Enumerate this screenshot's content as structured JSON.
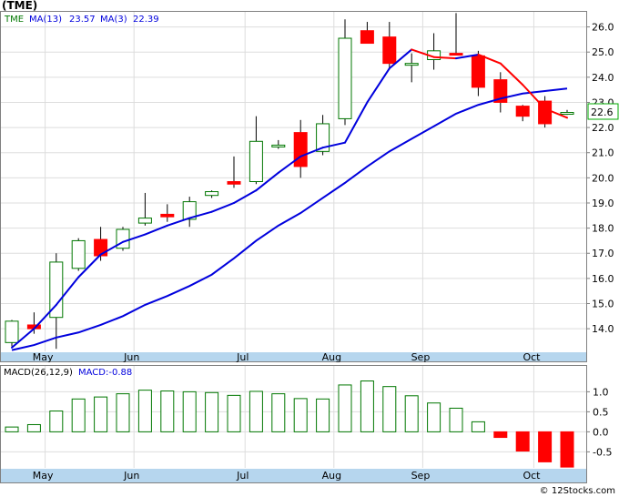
{
  "header": {
    "ticker": "(TME)",
    "legend_symbol": "TME",
    "ma13_label": "MA(13)",
    "ma13_value": "23.57",
    "ma3_label": "MA(3)",
    "ma3_value": "22.39"
  },
  "copyright": "© 12Stocks.com",
  "colors": {
    "up_candle": "#007700",
    "down_candle": "#ff0000",
    "ma13": "#0000dd",
    "ma3_up": "#0000dd",
    "ma3_down": "#ff0000",
    "macd_bar_up": "#007700",
    "macd_bar_down": "#ff0000",
    "axis_band": "#b6d6ee",
    "grid": "#dddddd"
  },
  "chart_data": [
    {
      "type": "candlestick",
      "title": "(TME)",
      "ylim": [
        13.1,
        26.6
      ],
      "yticks": [
        14.0,
        15.0,
        16.0,
        17.0,
        18.0,
        19.0,
        20.0,
        21.0,
        22.0,
        23.0,
        24.0,
        25.0,
        26.0
      ],
      "last_price_label": "22.6",
      "last_price": 22.6,
      "x_labels": [
        "May",
        "Jun",
        "Jul",
        "Aug",
        "Sep",
        "Oct"
      ],
      "x_label_index": [
        1,
        5,
        10,
        14,
        18,
        23
      ],
      "candles": [
        {
          "o": 13.45,
          "h": 14.35,
          "l": 13.3,
          "c": 14.3
        },
        {
          "o": 14.15,
          "h": 14.65,
          "l": 13.8,
          "c": 14.0
        },
        {
          "o": 14.45,
          "h": 17.0,
          "l": 13.2,
          "c": 16.65
        },
        {
          "o": 16.4,
          "h": 17.6,
          "l": 16.3,
          "c": 17.5
        },
        {
          "o": 17.55,
          "h": 18.05,
          "l": 16.7,
          "c": 16.9
        },
        {
          "o": 17.2,
          "h": 18.05,
          "l": 17.1,
          "c": 17.95
        },
        {
          "o": 18.2,
          "h": 19.4,
          "l": 18.1,
          "c": 18.4
        },
        {
          "o": 18.55,
          "h": 18.95,
          "l": 18.25,
          "c": 18.45
        },
        {
          "o": 18.35,
          "h": 19.25,
          "l": 18.05,
          "c": 19.05
        },
        {
          "o": 19.3,
          "h": 19.5,
          "l": 19.2,
          "c": 19.45
        },
        {
          "o": 19.85,
          "h": 20.85,
          "l": 19.6,
          "c": 19.75
        },
        {
          "o": 19.85,
          "h": 22.45,
          "l": 19.75,
          "c": 21.45
        },
        {
          "o": 21.3,
          "h": 21.5,
          "l": 21.15,
          "c": 21.3
        },
        {
          "o": 21.8,
          "h": 22.3,
          "l": 20.0,
          "c": 20.45
        },
        {
          "o": 21.05,
          "h": 22.5,
          "l": 20.9,
          "c": 22.15
        },
        {
          "o": 22.35,
          "h": 26.3,
          "l": 22.1,
          "c": 25.55
        },
        {
          "o": 25.85,
          "h": 26.2,
          "l": 25.4,
          "c": 25.35
        },
        {
          "o": 25.6,
          "h": 26.2,
          "l": 24.3,
          "c": 24.55
        },
        {
          "o": 24.55,
          "h": 24.95,
          "l": 23.8,
          "c": 24.55
        },
        {
          "o": 24.7,
          "h": 25.75,
          "l": 24.3,
          "c": 25.05
        },
        {
          "o": 24.95,
          "h": 26.55,
          "l": 24.9,
          "c": 24.9
        },
        {
          "o": 24.85,
          "h": 25.05,
          "l": 23.25,
          "c": 23.6
        },
        {
          "o": 23.9,
          "h": 24.2,
          "l": 22.6,
          "c": 23.0
        },
        {
          "o": 22.85,
          "h": 22.9,
          "l": 22.25,
          "c": 22.45
        },
        {
          "o": 23.05,
          "h": 23.25,
          "l": 22.0,
          "c": 22.15
        },
        {
          "o": 22.6,
          "h": 22.7,
          "l": 22.5,
          "c": 22.6
        }
      ],
      "ma13": [
        13.15,
        13.35,
        13.65,
        13.85,
        14.15,
        14.5,
        14.95,
        15.3,
        15.7,
        16.15,
        16.8,
        17.5,
        18.1,
        18.6,
        19.2,
        19.8,
        20.45,
        21.05,
        21.55,
        22.05,
        22.55,
        22.9,
        23.15,
        23.35,
        23.45,
        23.55
      ],
      "ma3": [
        13.25,
        14.0,
        14.95,
        16.05,
        16.95,
        17.45,
        17.75,
        18.1,
        18.4,
        18.65,
        19.0,
        19.5,
        20.2,
        20.85,
        21.2,
        21.4,
        23.0,
        24.35,
        25.1,
        24.8,
        24.75,
        24.9,
        24.55,
        23.7,
        22.75,
        22.39
      ]
    },
    {
      "type": "bar",
      "title": "MACD(26,12,9)",
      "series_label": "MACD:-0.88",
      "ylim": [
        -0.9,
        1.35
      ],
      "yticks": [
        -0.5,
        0.0,
        0.5,
        1.0
      ],
      "ytick_labels": [
        "-0.5",
        "0.0",
        "0.5",
        "1.0"
      ],
      "values": [
        0.12,
        0.18,
        0.52,
        0.82,
        0.87,
        0.95,
        1.04,
        1.02,
        1.0,
        0.98,
        0.91,
        1.01,
        0.95,
        0.83,
        0.82,
        1.17,
        1.27,
        1.13,
        0.9,
        0.72,
        0.59,
        0.25,
        -0.14,
        -0.48,
        -0.75,
        -0.88
      ]
    }
  ]
}
